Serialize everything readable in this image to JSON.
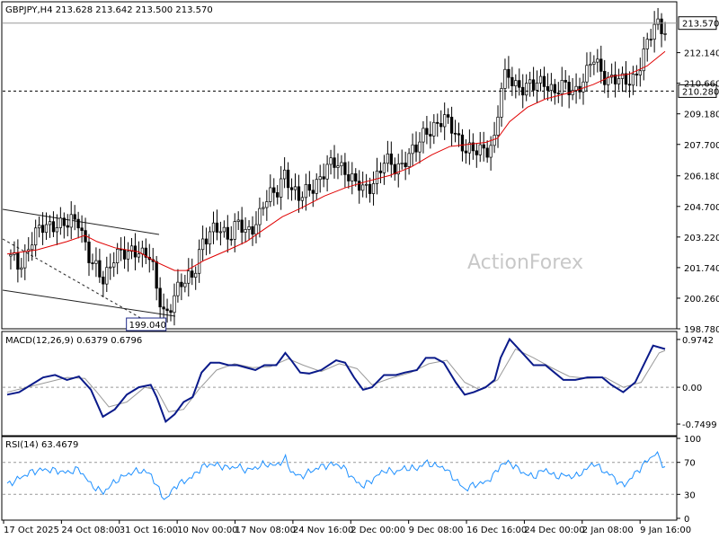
{
  "chart_data": [
    {
      "type": "candlestick",
      "header": "GBPJPY,H4  213.628 213.642 213.500 213.570",
      "watermark": "ActionForex",
      "ylim": [
        198.78,
        214.6
      ],
      "y_ticks": [
        "212.140",
        "210.660",
        "209.180",
        "207.700",
        "206.180",
        "204.700",
        "203.220",
        "201.740",
        "200.260",
        "198.780"
      ],
      "current_price": 213.57,
      "current_price_label": "213.570",
      "support_level": 210.28,
      "support_level_label": "210.280",
      "low_marker": {
        "value": 199.04,
        "label": "199.040",
        "x_index": 5.4
      },
      "price_path": [
        [
          0,
          202.3
        ],
        [
          0.4,
          201.8
        ],
        [
          0.8,
          203.1
        ],
        [
          1.2,
          203.6
        ],
        [
          1.6,
          204.0
        ],
        [
          2.0,
          203.7
        ],
        [
          2.4,
          204.1
        ],
        [
          2.8,
          202.0
        ],
        [
          3.2,
          201.0
        ],
        [
          3.6,
          202.6
        ],
        [
          4.0,
          202.2
        ],
        [
          4.4,
          202.7
        ],
        [
          4.8,
          202.3
        ],
        [
          5.0,
          200.4
        ],
        [
          5.3,
          199.4
        ],
        [
          5.6,
          200.6
        ],
        [
          5.9,
          200.9
        ],
        [
          6.2,
          201.3
        ],
        [
          6.5,
          203.1
        ],
        [
          6.8,
          203.3
        ],
        [
          7.1,
          203.6
        ],
        [
          7.4,
          203.4
        ],
        [
          7.7,
          203.9
        ],
        [
          8.0,
          203.2
        ],
        [
          8.3,
          204.0
        ],
        [
          8.6,
          205.0
        ],
        [
          9.0,
          205.2
        ],
        [
          9.3,
          206.6
        ],
        [
          9.5,
          205.6
        ],
        [
          9.8,
          204.9
        ],
        [
          10.1,
          205.6
        ],
        [
          10.5,
          206.2
        ],
        [
          11.0,
          206.8
        ],
        [
          11.3,
          206.6
        ],
        [
          11.6,
          205.8
        ],
        [
          11.9,
          205.4
        ],
        [
          12.2,
          205.9
        ],
        [
          12.6,
          206.8
        ],
        [
          13.0,
          206.5
        ],
        [
          13.3,
          207.1
        ],
        [
          13.7,
          207.4
        ],
        [
          14.0,
          208.4
        ],
        [
          14.3,
          208.7
        ],
        [
          14.6,
          208.8
        ],
        [
          15.0,
          208.3
        ],
        [
          15.3,
          207.6
        ],
        [
          15.6,
          207.2
        ],
        [
          16.0,
          207.5
        ],
        [
          16.3,
          208.0
        ],
        [
          16.5,
          210.2
        ],
        [
          16.7,
          211.0
        ],
        [
          17.0,
          210.7
        ],
        [
          17.3,
          210.5
        ],
        [
          17.6,
          210.4
        ],
        [
          18.0,
          210.9
        ],
        [
          18.3,
          210.2
        ],
        [
          18.6,
          210.4
        ],
        [
          19.0,
          210.4
        ],
        [
          19.4,
          211.1
        ],
        [
          19.6,
          211.8
        ],
        [
          19.9,
          211.2
        ],
        [
          20.2,
          210.9
        ],
        [
          20.6,
          210.6
        ],
        [
          21.0,
          211.1
        ],
        [
          21.4,
          212.4
        ],
        [
          21.7,
          213.6
        ],
        [
          22.0,
          213.4
        ]
      ],
      "ma_path": [
        [
          0,
          202.4
        ],
        [
          1.0,
          202.6
        ],
        [
          2.0,
          203.0
        ],
        [
          2.6,
          203.3
        ],
        [
          3.0,
          203.0
        ],
        [
          3.6,
          202.7
        ],
        [
          4.4,
          202.5
        ],
        [
          5.0,
          202.0
        ],
        [
          5.6,
          201.6
        ],
        [
          6.0,
          201.6
        ],
        [
          6.6,
          202.1
        ],
        [
          7.4,
          202.6
        ],
        [
          8.0,
          203.0
        ],
        [
          8.6,
          203.6
        ],
        [
          9.2,
          204.2
        ],
        [
          9.8,
          204.6
        ],
        [
          10.6,
          205.2
        ],
        [
          11.3,
          205.6
        ],
        [
          12.0,
          205.9
        ],
        [
          12.8,
          206.2
        ],
        [
          13.5,
          206.6
        ],
        [
          14.2,
          207.2
        ],
        [
          14.8,
          207.6
        ],
        [
          15.4,
          207.7
        ],
        [
          16.0,
          207.8
        ],
        [
          16.4,
          208.0
        ],
        [
          16.8,
          208.8
        ],
        [
          17.4,
          209.5
        ],
        [
          18.0,
          209.9
        ],
        [
          18.8,
          210.2
        ],
        [
          19.6,
          210.6
        ],
        [
          20.2,
          211.0
        ],
        [
          20.8,
          211.1
        ],
        [
          21.4,
          211.5
        ],
        [
          22.0,
          212.2
        ]
      ],
      "x_ticks": [
        "17 Oct 2025",
        "24 Oct 08:00",
        "31 Oct 16:00",
        "10 Nov 00:00",
        "17 Nov 08:00",
        "24 Nov 16:00",
        "2 Dec 00:00",
        "9 Dec 08:00",
        "16 Dec 16:00",
        "24 Dec 00:00",
        "2 Jan 08:00",
        "9 Jan 16:00"
      ]
    },
    {
      "type": "line",
      "header": "MACD(12,26,9) 0.6379 0.6796",
      "ylim": [
        -0.95,
        1.1
      ],
      "y_ticks": [
        "0.9742",
        "0.00",
        "-0.7499"
      ],
      "zero_label": "0.00",
      "macd_path": [
        [
          0,
          -0.15
        ],
        [
          0.4,
          -0.1
        ],
        [
          0.8,
          0.05
        ],
        [
          1.2,
          0.2
        ],
        [
          1.6,
          0.25
        ],
        [
          2.0,
          0.15
        ],
        [
          2.4,
          0.22
        ],
        [
          2.8,
          -0.05
        ],
        [
          3.2,
          -0.6
        ],
        [
          3.6,
          -0.45
        ],
        [
          4.0,
          -0.15
        ],
        [
          4.4,
          0.0
        ],
        [
          4.8,
          0.05
        ],
        [
          5.0,
          -0.2
        ],
        [
          5.3,
          -0.7
        ],
        [
          5.6,
          -0.55
        ],
        [
          5.9,
          -0.3
        ],
        [
          6.2,
          -0.2
        ],
        [
          6.5,
          0.3
        ],
        [
          6.8,
          0.5
        ],
        [
          7.1,
          0.5
        ],
        [
          7.4,
          0.45
        ],
        [
          7.7,
          0.45
        ],
        [
          8.0,
          0.4
        ],
        [
          8.3,
          0.35
        ],
        [
          8.6,
          0.45
        ],
        [
          9.0,
          0.45
        ],
        [
          9.3,
          0.7
        ],
        [
          9.5,
          0.55
        ],
        [
          9.8,
          0.3
        ],
        [
          10.1,
          0.28
        ],
        [
          10.5,
          0.35
        ],
        [
          11.0,
          0.55
        ],
        [
          11.3,
          0.5
        ],
        [
          11.6,
          0.2
        ],
        [
          11.9,
          -0.05
        ],
        [
          12.2,
          0.0
        ],
        [
          12.6,
          0.25
        ],
        [
          13.0,
          0.25
        ],
        [
          13.3,
          0.3
        ],
        [
          13.7,
          0.35
        ],
        [
          14.0,
          0.6
        ],
        [
          14.3,
          0.6
        ],
        [
          14.6,
          0.5
        ],
        [
          15.0,
          0.1
        ],
        [
          15.3,
          -0.15
        ],
        [
          15.6,
          -0.1
        ],
        [
          16.0,
          0.0
        ],
        [
          16.3,
          0.15
        ],
        [
          16.5,
          0.6
        ],
        [
          16.8,
          0.98
        ],
        [
          17.0,
          0.85
        ],
        [
          17.3,
          0.65
        ],
        [
          17.6,
          0.45
        ],
        [
          18.0,
          0.45
        ],
        [
          18.3,
          0.3
        ],
        [
          18.6,
          0.15
        ],
        [
          19.0,
          0.15
        ],
        [
          19.4,
          0.2
        ],
        [
          19.6,
          0.2
        ],
        [
          19.9,
          0.2
        ],
        [
          20.2,
          0.05
        ],
        [
          20.6,
          -0.1
        ],
        [
          21.0,
          0.1
        ],
        [
          21.4,
          0.6
        ],
        [
          21.6,
          0.85
        ],
        [
          22.0,
          0.78
        ]
      ],
      "signal_path": [
        [
          0,
          -0.1
        ],
        [
          1.0,
          0.05
        ],
        [
          2.0,
          0.2
        ],
        [
          2.6,
          0.18
        ],
        [
          3.0,
          -0.1
        ],
        [
          3.4,
          -0.4
        ],
        [
          4.0,
          -0.3
        ],
        [
          4.6,
          0.0
        ],
        [
          5.0,
          -0.05
        ],
        [
          5.4,
          -0.5
        ],
        [
          5.9,
          -0.45
        ],
        [
          6.4,
          -0.05
        ],
        [
          7.0,
          0.35
        ],
        [
          7.6,
          0.48
        ],
        [
          8.2,
          0.4
        ],
        [
          8.8,
          0.42
        ],
        [
          9.4,
          0.58
        ],
        [
          9.9,
          0.45
        ],
        [
          10.5,
          0.32
        ],
        [
          11.1,
          0.48
        ],
        [
          11.7,
          0.38
        ],
        [
          12.2,
          0.05
        ],
        [
          12.8,
          0.18
        ],
        [
          13.5,
          0.3
        ],
        [
          14.1,
          0.48
        ],
        [
          14.7,
          0.55
        ],
        [
          15.3,
          0.1
        ],
        [
          15.8,
          -0.05
        ],
        [
          16.4,
          0.15
        ],
        [
          17.0,
          0.78
        ],
        [
          17.6,
          0.6
        ],
        [
          18.2,
          0.4
        ],
        [
          18.8,
          0.22
        ],
        [
          19.4,
          0.18
        ],
        [
          20.0,
          0.2
        ],
        [
          20.6,
          0.0
        ],
        [
          21.2,
          0.1
        ],
        [
          21.8,
          0.7
        ],
        [
          22.0,
          0.75
        ]
      ]
    },
    {
      "type": "line",
      "header": "RSI(14) 63.4679",
      "ylim": [
        0,
        100
      ],
      "y_ticks": [
        "100",
        "70",
        "30",
        "0"
      ],
      "levels": [
        70,
        30
      ],
      "rsi_path": [
        [
          0,
          42
        ],
        [
          0.4,
          50
        ],
        [
          0.8,
          58
        ],
        [
          1.2,
          61
        ],
        [
          1.6,
          60
        ],
        [
          2.0,
          57
        ],
        [
          2.4,
          62
        ],
        [
          2.8,
          42
        ],
        [
          3.2,
          32
        ],
        [
          3.6,
          46
        ],
        [
          4.0,
          55
        ],
        [
          4.4,
          60
        ],
        [
          4.8,
          56
        ],
        [
          5.0,
          40
        ],
        [
          5.3,
          22
        ],
        [
          5.6,
          40
        ],
        [
          5.9,
          46
        ],
        [
          6.2,
          52
        ],
        [
          6.5,
          64
        ],
        [
          6.8,
          68
        ],
        [
          7.1,
          66
        ],
        [
          7.4,
          63
        ],
        [
          7.7,
          65
        ],
        [
          8.0,
          60
        ],
        [
          8.3,
          63
        ],
        [
          8.6,
          68
        ],
        [
          9.0,
          66
        ],
        [
          9.3,
          75
        ],
        [
          9.5,
          58
        ],
        [
          9.8,
          52
        ],
        [
          10.1,
          58
        ],
        [
          10.5,
          65
        ],
        [
          11.0,
          68
        ],
        [
          11.3,
          62
        ],
        [
          11.6,
          48
        ],
        [
          11.9,
          40
        ],
        [
          12.2,
          48
        ],
        [
          12.6,
          60
        ],
        [
          13.0,
          58
        ],
        [
          13.3,
          63
        ],
        [
          13.7,
          62
        ],
        [
          14.0,
          70
        ],
        [
          14.3,
          66
        ],
        [
          14.6,
          64
        ],
        [
          15.0,
          48
        ],
        [
          15.3,
          36
        ],
        [
          15.6,
          42
        ],
        [
          16.0,
          45
        ],
        [
          16.3,
          55
        ],
        [
          16.5,
          67
        ],
        [
          16.8,
          70
        ],
        [
          17.0,
          64
        ],
        [
          17.3,
          56
        ],
        [
          17.6,
          52
        ],
        [
          18.0,
          62
        ],
        [
          18.3,
          52
        ],
        [
          18.6,
          54
        ],
        [
          19.0,
          52
        ],
        [
          19.4,
          62
        ],
        [
          19.6,
          70
        ],
        [
          19.9,
          60
        ],
        [
          20.2,
          54
        ],
        [
          20.6,
          40
        ],
        [
          21.0,
          56
        ],
        [
          21.4,
          72
        ],
        [
          21.7,
          82
        ],
        [
          22.0,
          63
        ]
      ]
    }
  ]
}
